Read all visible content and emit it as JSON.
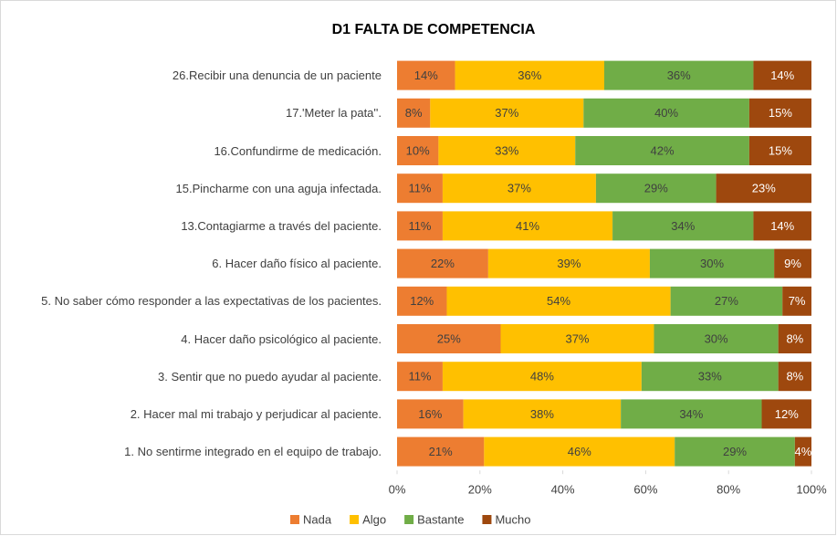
{
  "chart_data": {
    "type": "stacked_bar_horizontal",
    "title": "D1 FALTA DE COMPETENCIA",
    "categories": [
      "26.Recibir una denuncia de un paciente",
      "17.'Meter la pata''.",
      "16.Confundirme de medicación.",
      "15.Pincharme con una aguja infectada.",
      "13.Contagiarme a través del paciente.",
      "6. Hacer daño físico al paciente.",
      "5. No saber cómo responder a las expectativas de los pacientes.",
      "4. Hacer daño psicológico al paciente.",
      "3. Sentir que no puedo ayudar al paciente.",
      "2.  Hacer mal mi trabajo y perjudicar al paciente.",
      "1. No sentirme integrado en el equipo de trabajo."
    ],
    "series": [
      {
        "name": "Nada",
        "color": "#ED7D31",
        "label_color": "#404040",
        "values": [
          14,
          8,
          10,
          11,
          11,
          22,
          12,
          25,
          11,
          16,
          21
        ],
        "value_labels": [
          "14%",
          "8%",
          "10%",
          "11%",
          "11%",
          "22%",
          "12%",
          "25%",
          "11%",
          "16%",
          "21%"
        ]
      },
      {
        "name": "Algo",
        "color": "#FFC000",
        "label_color": "#404040",
        "values": [
          36,
          37,
          33,
          37,
          41,
          39,
          54,
          37,
          48,
          38,
          46
        ],
        "value_labels": [
          "36%",
          "37%",
          "33%",
          "37%",
          "41%",
          "39%",
          "54%",
          "37%",
          "48%",
          "38%",
          "46%"
        ]
      },
      {
        "name": "Bastante",
        "color": "#70AD47",
        "label_color": "#404040",
        "values": [
          36,
          40,
          42,
          29,
          34,
          30,
          27,
          30,
          33,
          34,
          29
        ],
        "value_labels": [
          "36%",
          "40%",
          "42%",
          "29%",
          "34%",
          "30%",
          "27%",
          "30%",
          "33%",
          "34%",
          "29%"
        ]
      },
      {
        "name": "Mucho",
        "color": "#9E480E",
        "label_color": "#ffffff",
        "values": [
          14,
          15,
          15,
          23,
          14,
          9,
          7,
          8,
          8,
          12,
          4
        ],
        "value_labels": [
          "14%",
          "15%",
          "15%",
          "23%",
          "14%",
          "9%",
          "7%",
          "8%",
          "8%",
          "12%",
          "4%"
        ]
      }
    ],
    "xlim": [
      0,
      100
    ],
    "xticks": [
      {
        "value": 0,
        "label": "0%"
      },
      {
        "value": 20,
        "label": "20%"
      },
      {
        "value": 40,
        "label": "40%"
      },
      {
        "value": 60,
        "label": "60%"
      },
      {
        "value": 80,
        "label": "80%"
      },
      {
        "value": 100,
        "label": "100%"
      }
    ],
    "legend": "bottom"
  }
}
